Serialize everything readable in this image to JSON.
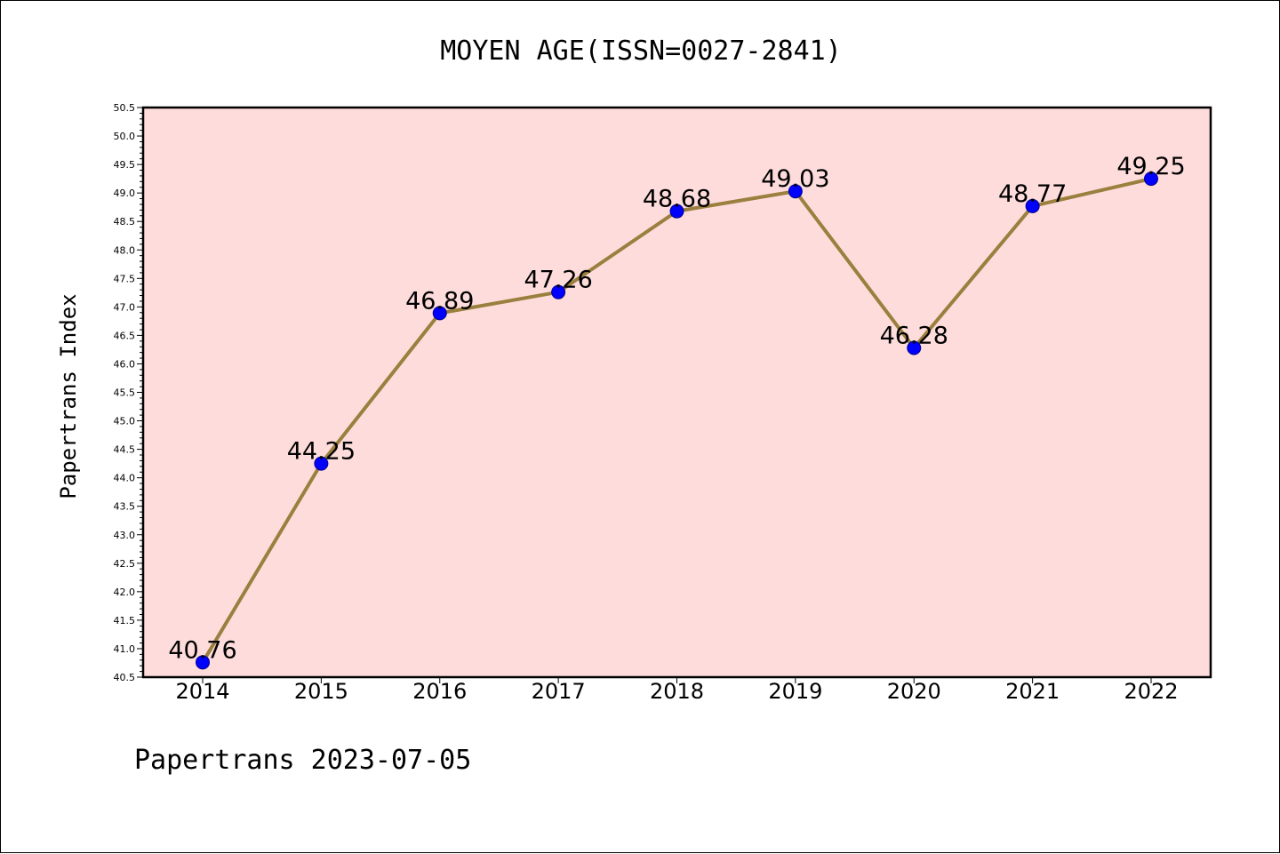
{
  "chart_data": {
    "type": "line",
    "title": "MOYEN AGE(ISSN=0027-2841)",
    "ylabel": "Papertrans Index",
    "xlabel": "",
    "footer": "Papertrans 2023-07-05",
    "categories": [
      "2014",
      "2015",
      "2016",
      "2017",
      "2018",
      "2019",
      "2020",
      "2021",
      "2022"
    ],
    "values": [
      40.76,
      44.25,
      46.89,
      47.26,
      48.68,
      49.03,
      46.28,
      48.77,
      49.25
    ],
    "value_labels": [
      "40.76",
      "44.25",
      "46.89",
      "47.26",
      "48.68",
      "49.03",
      "46.28",
      "48.77",
      "49.25"
    ],
    "ylim": [
      40.5,
      50.5
    ],
    "yticks": [
      "40.5",
      "41.0",
      "41.5",
      "42.0",
      "42.5",
      "43.0",
      "43.5",
      "44.0",
      "44.5",
      "45.0",
      "45.5",
      "46.0",
      "46.5",
      "47.0",
      "47.5",
      "48.0",
      "48.5",
      "49.0",
      "49.5",
      "50.0",
      "50.5"
    ],
    "grid": false,
    "colors": {
      "plot_background": "#fddcdb",
      "line": "#9b7f3e",
      "marker": "#0000ff",
      "marker_edge": "#00008b"
    }
  }
}
